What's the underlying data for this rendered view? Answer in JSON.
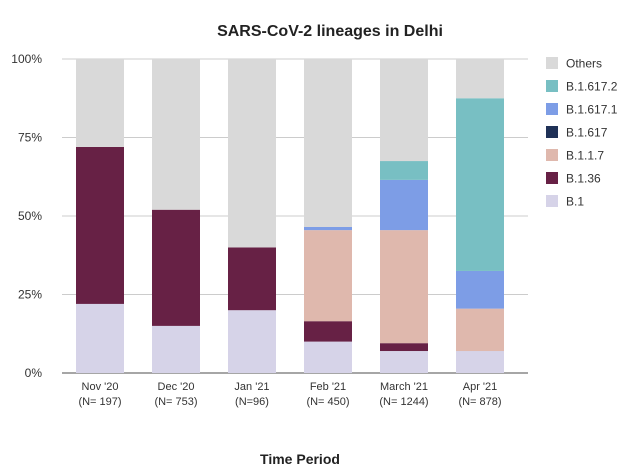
{
  "chart_data": {
    "type": "bar",
    "stacked": true,
    "title": "SARS-CoV-2 lineages in Delhi",
    "xlabel": "Time Period",
    "ylabel": "",
    "ylim": [
      0,
      100
    ],
    "yticks": [
      "0%",
      "25%",
      "50%",
      "75%",
      "100%"
    ],
    "grid": true,
    "legend_position": "right",
    "categories": [
      {
        "label": "Nov '20",
        "n": "(N= 197)"
      },
      {
        "label": "Dec '20",
        "n": "(N= 753)"
      },
      {
        "label": "Jan '21",
        "n": "(N=96)"
      },
      {
        "label": "Feb '21",
        "n": "(N= 450)"
      },
      {
        "label": "March '21",
        "n": "(N= 1244)"
      },
      {
        "label": "Apr '21",
        "n": "(N= 878)"
      }
    ],
    "series": [
      {
        "name": "B.1",
        "color": "#d6d3e8",
        "values": [
          22,
          15,
          20,
          10,
          7,
          7
        ]
      },
      {
        "name": "B.1.36",
        "color": "#672145",
        "values": [
          50,
          37,
          20,
          6.5,
          2.5,
          0
        ]
      },
      {
        "name": "B.1.1.7",
        "color": "#dfb8ad",
        "values": [
          0,
          0,
          0,
          29,
          36,
          13.5
        ]
      },
      {
        "name": "B.1.617",
        "color": "#1f3157",
        "values": [
          0,
          0,
          0,
          0,
          0,
          0
        ]
      },
      {
        "name": "B.1.617.1",
        "color": "#7d9de6",
        "values": [
          0,
          0,
          0,
          1,
          16,
          12
        ]
      },
      {
        "name": "B.1.617.2",
        "color": "#78bfc3",
        "values": [
          0,
          0,
          0,
          0,
          6,
          55
        ]
      },
      {
        "name": "Others",
        "color": "#d9d9d9",
        "values": [
          28,
          48,
          60,
          53.5,
          32.5,
          12.5
        ]
      }
    ]
  }
}
